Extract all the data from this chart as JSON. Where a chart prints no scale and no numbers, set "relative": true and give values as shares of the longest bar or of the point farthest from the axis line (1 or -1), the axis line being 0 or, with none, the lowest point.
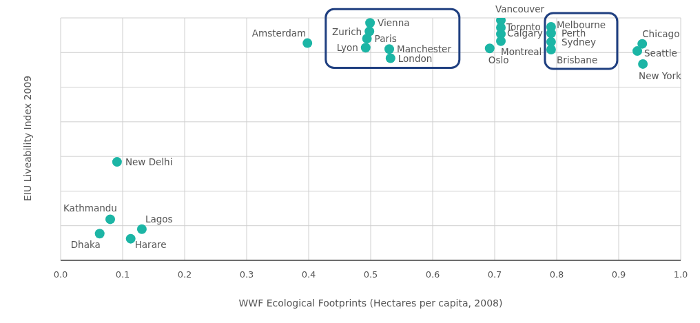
{
  "chart_data": {
    "type": "scatter",
    "xlabel": "WWF Ecological Footprints (Hectares per capita, 2008)",
    "ylabel": "EIU Liveability Index 2009",
    "relative": true,
    "grid": true,
    "marker": "circle",
    "xlim": [
      0,
      1
    ],
    "xticks": [
      {
        "value": 0,
        "label": "0.0"
      },
      {
        "value": 0.1,
        "label": "0.1"
      },
      {
        "value": 0.2,
        "label": "0.2"
      },
      {
        "value": 0.3,
        "label": "0.3"
      },
      {
        "value": 0.4,
        "label": "0.4"
      },
      {
        "value": 0.5,
        "label": "0.5"
      },
      {
        "value": 0.6,
        "label": "0.6"
      },
      {
        "value": 0.7,
        "label": "0.7"
      },
      {
        "value": 0.8,
        "label": "0.8"
      },
      {
        "value": 0.9,
        "label": "0.9"
      },
      {
        "value": 1,
        "label": "1.0"
      }
    ],
    "series": [
      {
        "color": "#1cb5a5",
        "x": [
          0.499,
          0.498,
          0.494,
          0.492,
          0.53,
          0.532,
          0.398,
          0.71,
          0.71,
          0.71,
          0.71,
          0.692,
          0.791,
          0.791,
          0.791,
          0.791,
          0.938,
          0.93,
          0.939,
          0.091,
          0.08,
          0.131,
          0.063,
          0.113
        ],
        "values": [
          0.989,
          0.954,
          0.924,
          0.886,
          0.88,
          0.842,
          0.905,
          1,
          0.97,
          0.943,
          0.913,
          0.883,
          0.973,
          0.946,
          0.91,
          0.878,
          0.902,
          0.872,
          0.818,
          0.41,
          0.171,
          0.13,
          0.111,
          0.09
        ]
      }
    ],
    "annotations": [
      {
        "text": "Vienna",
        "x": 0.499,
        "y": 0.989
      },
      {
        "text": "Zurich",
        "x": 0.498,
        "y": 0.954
      },
      {
        "text": "Paris",
        "x": 0.494,
        "y": 0.924
      },
      {
        "text": "Lyon",
        "x": 0.492,
        "y": 0.886
      },
      {
        "text": "Manchester",
        "x": 0.53,
        "y": 0.88
      },
      {
        "text": "London",
        "x": 0.532,
        "y": 0.842
      },
      {
        "text": "Amsterdam",
        "x": 0.398,
        "y": 0.905
      },
      {
        "text": "Vancouver",
        "x": 0.71,
        "y": 1
      },
      {
        "text": "Toronto",
        "x": 0.71,
        "y": 0.97
      },
      {
        "text": "Calgary",
        "x": 0.71,
        "y": 0.943
      },
      {
        "text": "Montreal",
        "x": 0.71,
        "y": 0.913
      },
      {
        "text": "Oslo",
        "x": 0.692,
        "y": 0.883
      },
      {
        "text": "Melbourne",
        "x": 0.791,
        "y": 0.973
      },
      {
        "text": "Perth",
        "x": 0.791,
        "y": 0.946
      },
      {
        "text": "Sydney",
        "x": 0.791,
        "y": 0.91
      },
      {
        "text": "Brisbane",
        "x": 0.791,
        "y": 0.878
      },
      {
        "text": "Chicago",
        "x": 0.938,
        "y": 0.902
      },
      {
        "text": "Seattle",
        "x": 0.93,
        "y": 0.872
      },
      {
        "text": "New York",
        "x": 0.939,
        "y": 0.818
      },
      {
        "text": "New Delhi",
        "x": 0.091,
        "y": 0.41
      },
      {
        "text": "Kathmandu",
        "x": 0.08,
        "y": 0.171
      },
      {
        "text": "Lagos",
        "x": 0.131,
        "y": 0.13
      },
      {
        "text": "Dhaka",
        "x": 0.063,
        "y": 0.111
      },
      {
        "text": "Harare",
        "x": 0.113,
        "y": 0.09
      }
    ]
  }
}
